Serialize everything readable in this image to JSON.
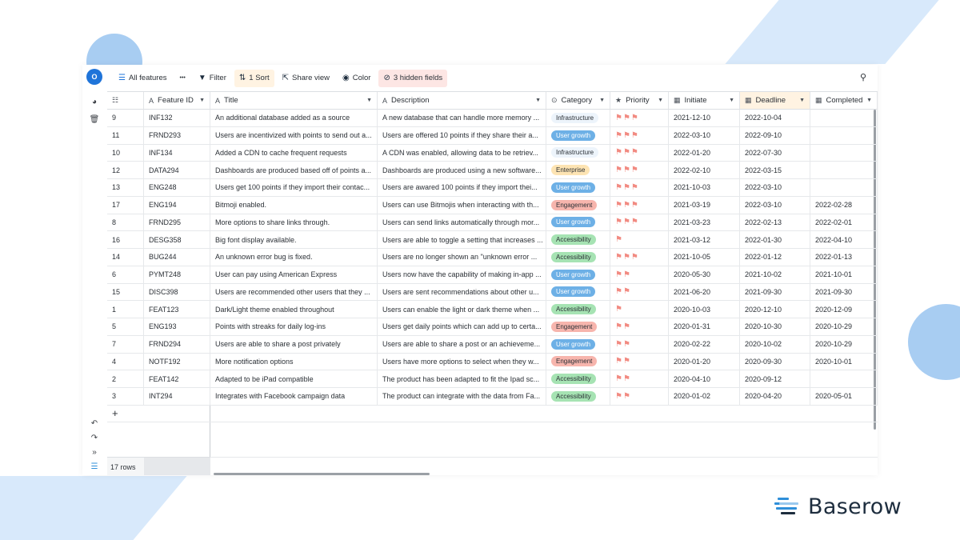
{
  "brand": {
    "name": "Baserow"
  },
  "user": {
    "initial": "O"
  },
  "toolbar": {
    "view_label": "All features",
    "more_label": "•••",
    "filter_label": "Filter",
    "sort_label": "1 Sort",
    "share_label": "Share view",
    "color_label": "Color",
    "hidden_label": "3 hidden fields"
  },
  "columns": {
    "feature_id": "Feature ID",
    "title": "Title",
    "description": "Description",
    "category": "Category",
    "priority": "Priority",
    "initiate": "Initiate",
    "deadline": "Deadline",
    "completed": "Completed"
  },
  "category_colors": {
    "Infrastructure": {
      "bg": "#edf4fb",
      "fg": "#2b3036"
    },
    "User growth": {
      "bg": "#6db0e6",
      "fg": "#ffffff"
    },
    "Enterprise": {
      "bg": "#fde4b3",
      "fg": "#2b3036"
    },
    "Engagement": {
      "bg": "#f7b5ad",
      "fg": "#2b3036"
    },
    "Accessibility": {
      "bg": "#a6e3b3",
      "fg": "#2b3036"
    }
  },
  "rows": [
    {
      "id": "9",
      "feature_id": "INF132",
      "title": "An additional database added as a source",
      "description": "A new database that can handle more memory ...",
      "category": "Infrastructure",
      "priority": 3,
      "initiate": "2021-12-10",
      "deadline": "2022-10-04",
      "completed": ""
    },
    {
      "id": "11",
      "feature_id": "FRND293",
      "title": "Users are incentivized with points to send out a...",
      "description": "Users are offered 10 points if they share their a...",
      "category": "User growth",
      "priority": 3,
      "initiate": "2022-03-10",
      "deadline": "2022-09-10",
      "completed": ""
    },
    {
      "id": "10",
      "feature_id": "INF134",
      "title": "Added a CDN to cache frequent requests",
      "description": "A CDN was enabled, allowing data to be retriev...",
      "category": "Infrastructure",
      "priority": 3,
      "initiate": "2022-01-20",
      "deadline": "2022-07-30",
      "completed": ""
    },
    {
      "id": "12",
      "feature_id": "DATA294",
      "title": "Dashboards are produced based off of points a...",
      "description": "Dashboards are produced using a new software...",
      "category": "Enterprise",
      "priority": 3,
      "initiate": "2022-02-10",
      "deadline": "2022-03-15",
      "completed": ""
    },
    {
      "id": "13",
      "feature_id": "ENG248",
      "title": "Users get 100 points if they import their contac...",
      "description": "Users are awared 100 points if they import thei...",
      "category": "User growth",
      "priority": 3,
      "initiate": "2021-10-03",
      "deadline": "2022-03-10",
      "completed": ""
    },
    {
      "id": "17",
      "feature_id": "ENG194",
      "title": "Bitmoji enabled.",
      "description": "Users can use Bitmojis when interacting with th...",
      "category": "Engagement",
      "priority": 3,
      "initiate": "2021-03-19",
      "deadline": "2022-03-10",
      "completed": "2022-02-28"
    },
    {
      "id": "8",
      "feature_id": "FRND295",
      "title": "More options to share links through.",
      "description": "Users can send links automatically through mor...",
      "category": "User growth",
      "priority": 3,
      "initiate": "2021-03-23",
      "deadline": "2022-02-13",
      "completed": "2022-02-01"
    },
    {
      "id": "16",
      "feature_id": "DESG358",
      "title": "Big font display available.",
      "description": "Users are able to toggle a setting that increases ...",
      "category": "Accessibility",
      "priority": 1,
      "initiate": "2021-03-12",
      "deadline": "2022-01-30",
      "completed": "2022-04-10"
    },
    {
      "id": "14",
      "feature_id": "BUG244",
      "title": "An unknown error bug is fixed.",
      "description": "Users are no longer shown an \"unknown error ...",
      "category": "Accessibility",
      "priority": 3,
      "initiate": "2021-10-05",
      "deadline": "2022-01-12",
      "completed": "2022-01-13"
    },
    {
      "id": "6",
      "feature_id": "PYMT248",
      "title": "User can pay using American Express",
      "description": "Users now have the capability of making in-app ...",
      "category": "User growth",
      "priority": 2,
      "initiate": "2020-05-30",
      "deadline": "2021-10-02",
      "completed": "2021-10-01"
    },
    {
      "id": "15",
      "feature_id": "DISC398",
      "title": "Users are recommended other users that they ...",
      "description": "Users are sent recommendations about other u...",
      "category": "User growth",
      "priority": 2,
      "initiate": "2021-06-20",
      "deadline": "2021-09-30",
      "completed": "2021-09-30"
    },
    {
      "id": "1",
      "feature_id": "FEAT123",
      "title": "Dark/Light theme enabled throughout",
      "description": "Users can enable the light or dark theme when ...",
      "category": "Accessibility",
      "priority": 1,
      "initiate": "2020-10-03",
      "deadline": "2020-12-10",
      "completed": "2020-12-09"
    },
    {
      "id": "5",
      "feature_id": "ENG193",
      "title": "Points with streaks for daily log-ins",
      "description": "Users get daily points which can add up to certa...",
      "category": "Engagement",
      "priority": 2,
      "initiate": "2020-01-31",
      "deadline": "2020-10-30",
      "completed": "2020-10-29"
    },
    {
      "id": "7",
      "feature_id": "FRND294",
      "title": "Users are able to share a post privately",
      "description": "Users are able to share a post or an achieveme...",
      "category": "User growth",
      "priority": 2,
      "initiate": "2020-02-22",
      "deadline": "2020-10-02",
      "completed": "2020-10-29"
    },
    {
      "id": "4",
      "feature_id": "NOTF192",
      "title": "More notification options",
      "description": "Users have more options to select when they w...",
      "category": "Engagement",
      "priority": 2,
      "initiate": "2020-01-20",
      "deadline": "2020-09-30",
      "completed": "2020-10-01"
    },
    {
      "id": "2",
      "feature_id": "FEAT142",
      "title": "Adapted to be iPad compatible",
      "description": "The product has been adapted to fit the Ipad sc...",
      "category": "Accessibility",
      "priority": 2,
      "initiate": "2020-04-10",
      "deadline": "2020-09-12",
      "completed": ""
    },
    {
      "id": "3",
      "feature_id": "INT294",
      "title": "Integrates with Facebook campaign data",
      "description": "The product can integrate with the data from Fa...",
      "category": "Accessibility",
      "priority": 2,
      "initiate": "2020-01-02",
      "deadline": "2020-04-20",
      "completed": "2020-05-01"
    }
  ],
  "footer": {
    "row_count": "17 rows",
    "add_row": "+"
  },
  "icons": {
    "view": "hamburger-icon",
    "filter": "funnel-icon",
    "sort": "sort-icon",
    "share": "share-icon",
    "color": "palette-icon",
    "hidden": "eye-slash-icon",
    "search": "search-icon",
    "flag": "flag-icon"
  }
}
